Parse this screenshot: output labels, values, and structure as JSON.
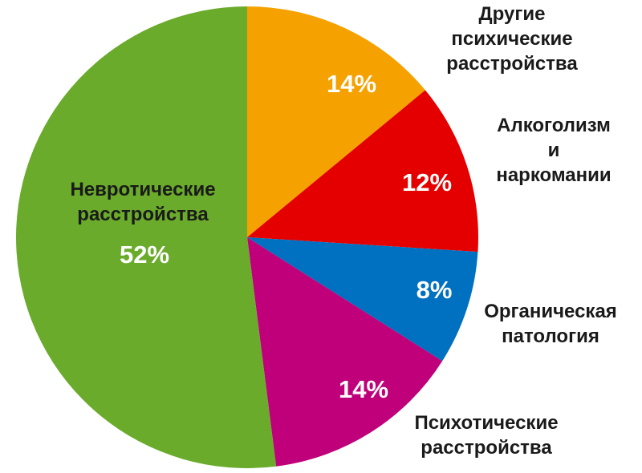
{
  "chart_data": {
    "type": "pie",
    "categories": [
      "Другие психические\nрасстройства",
      "Алкоголизм\nи наркомании",
      "Органическая\nпатология",
      "Психотические\nрасстройства",
      "Невротические\nрасстройства"
    ],
    "values": [
      14,
      12,
      8,
      14,
      52
    ],
    "value_labels": [
      "14%",
      "12%",
      "8%",
      "14%",
      "52%"
    ],
    "colors": [
      "#f5a100",
      "#e50000",
      "#0070c0",
      "#bf007a",
      "#6aab2b"
    ]
  }
}
